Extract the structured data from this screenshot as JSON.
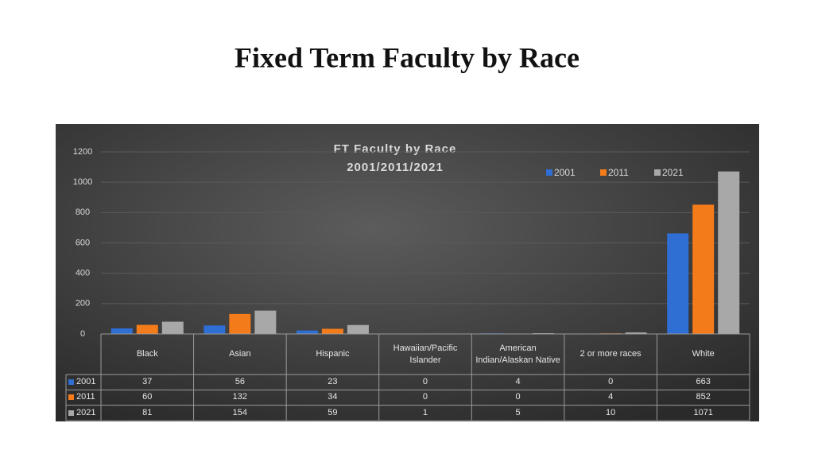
{
  "slide_title": "Fixed Term Faculty by Race",
  "chart_data": {
    "type": "bar",
    "title": "FT Faculty by Race",
    "subtitle": "2001/2011/2021",
    "categories": [
      "Black",
      "Asian",
      "Hispanic",
      "Hawaiian/Pacific Islander",
      "American Indian/Alaskan Native",
      "2 or more races",
      "White"
    ],
    "series": [
      {
        "name": "2001",
        "color": "#2f6ed3",
        "values": [
          37,
          56,
          23,
          0,
          4,
          0,
          663
        ]
      },
      {
        "name": "2011",
        "color": "#f47b1a",
        "values": [
          60,
          132,
          34,
          0,
          0,
          4,
          852
        ]
      },
      {
        "name": "2021",
        "color": "#a8a8a8",
        "values": [
          81,
          154,
          59,
          1,
          5,
          10,
          1071
        ]
      }
    ],
    "ylim": [
      0,
      1200
    ],
    "yticks": [
      0,
      200,
      400,
      600,
      800,
      1000,
      1200
    ],
    "grid": true,
    "legend": "top-right",
    "data_table": true
  }
}
